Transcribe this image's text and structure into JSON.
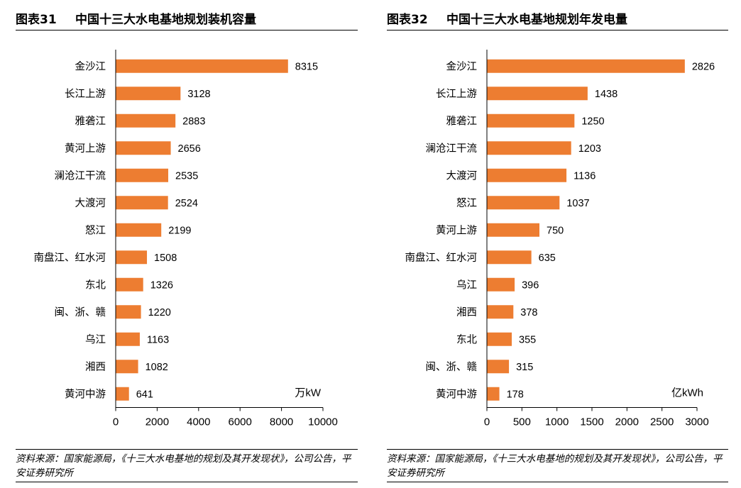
{
  "chart_data": [
    {
      "type": "bar",
      "orientation": "horizontal",
      "title_number": "图表31",
      "title": "中国十三大水电基地规划装机容量",
      "unit": "万kW",
      "categories": [
        "金沙江",
        "长江上游",
        "雅砻江",
        "黄河上游",
        "澜沧江干流",
        "大渡河",
        "怒江",
        "南盘江、红水河",
        "东北",
        "闽、浙、赣",
        "乌江",
        "湘西",
        "黄河中游"
      ],
      "values": [
        8315,
        3128,
        2883,
        2656,
        2535,
        2524,
        2199,
        1508,
        1326,
        1220,
        1163,
        1082,
        641
      ],
      "xlim": [
        0,
        10000
      ],
      "xticks": [
        "0",
        "2000",
        "4000",
        "6000",
        "8000",
        "10000"
      ],
      "bar_color": "#ED7D31",
      "grid": false,
      "source": "资料来源：国家能源局，《十三大水电基地的规划及其开发现状》，公司公告，平安证券研究所"
    },
    {
      "type": "bar",
      "orientation": "horizontal",
      "title_number": "图表32",
      "title": "中国十三大水电基地规划年发电量",
      "unit": "亿kWh",
      "categories": [
        "金沙江",
        "长江上游",
        "雅砻江",
        "澜沧江干流",
        "大渡河",
        "怒江",
        "黄河上游",
        "南盘江、红水河",
        "乌江",
        "湘西",
        "东北",
        "闽、浙、赣",
        "黄河中游"
      ],
      "values": [
        2826,
        1438,
        1250,
        1203,
        1136,
        1037,
        750,
        635,
        396,
        378,
        355,
        315,
        178
      ],
      "xlim": [
        0,
        3000
      ],
      "xticks": [
        "0",
        "500",
        "1000",
        "1500",
        "2000",
        "2500",
        "3000"
      ],
      "bar_color": "#ED7D31",
      "grid": false,
      "source": "资料来源：国家能源局，《十三大水电基地的规划及其开发现状》，公司公告，平安证券研究所"
    }
  ]
}
